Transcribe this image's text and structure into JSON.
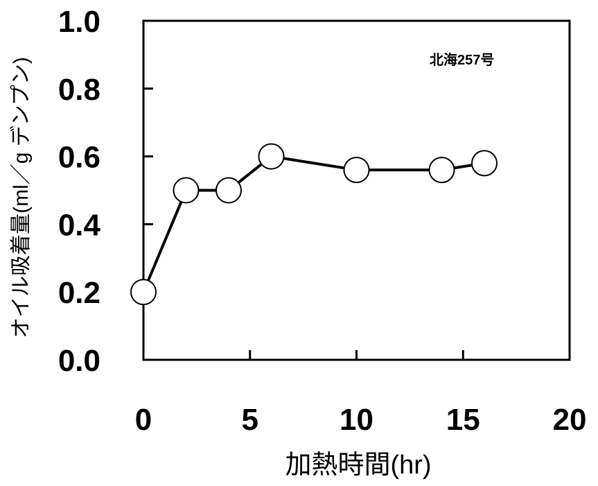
{
  "chart_data": {
    "type": "line",
    "title": "",
    "xlabel": "加熱時間(hr)",
    "ylabel": "オイル吸着量(ml／g デンプン)",
    "xlim": [
      0,
      20
    ],
    "ylim": [
      0,
      1.0
    ],
    "xticks": [
      "0",
      "5",
      "10",
      "15",
      "20"
    ],
    "yticks": [
      "0.0",
      "0.2",
      "0.4",
      "0.6",
      "0.8",
      "1.0"
    ],
    "grid": false,
    "annotation": "北海257号",
    "series": [
      {
        "x": [
          0,
          2,
          4,
          6,
          10,
          14,
          16
        ],
        "y": [
          0.2,
          0.5,
          0.5,
          0.6,
          0.56,
          0.56,
          0.58
        ],
        "marker": "open-circle",
        "color": "#000000"
      }
    ]
  }
}
